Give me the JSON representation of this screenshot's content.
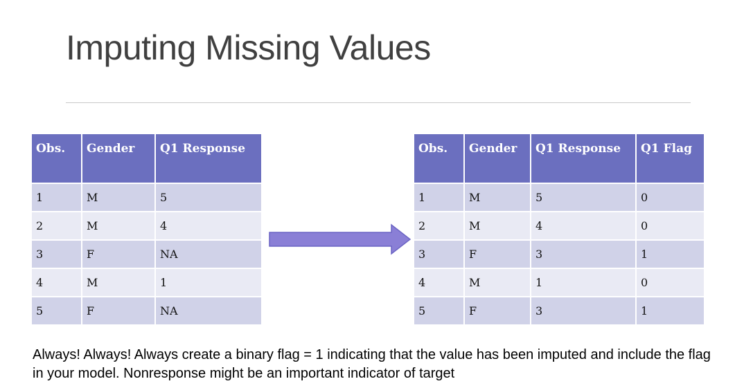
{
  "title": "Imputing Missing Values",
  "left_table": {
    "headers": [
      "Obs.",
      "Gender",
      "Q1 Response"
    ],
    "rows": [
      [
        "1",
        "M",
        "5"
      ],
      [
        "2",
        "M",
        "4"
      ],
      [
        "3",
        "F",
        "NA"
      ],
      [
        "4",
        "M",
        "1"
      ],
      [
        "5",
        "F",
        "NA"
      ]
    ]
  },
  "right_table": {
    "headers": [
      "Obs.",
      "Gender",
      "Q1 Response",
      "Q1 Flag"
    ],
    "rows": [
      [
        "1",
        "M",
        "5",
        "0"
      ],
      [
        "2",
        "M",
        "4",
        "0"
      ],
      [
        "3",
        "F",
        "3",
        "1"
      ],
      [
        "4",
        "M",
        "1",
        "0"
      ],
      [
        "5",
        "F",
        "3",
        "1"
      ]
    ],
    "imputed_color": "#e8221a"
  },
  "arrow_color": "#8a7fd6",
  "header_color": "#6b6fbf",
  "note": "Always! Always! Always create a binary flag = 1 indicating that  the value has been imputed and include the flag in your model.  Nonresponse might be an important indicator of target"
}
